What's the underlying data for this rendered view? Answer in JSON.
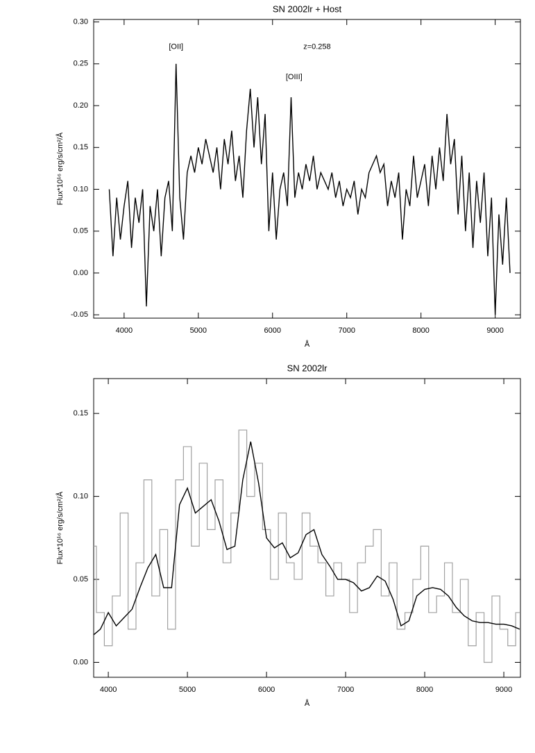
{
  "chart_data": [
    {
      "type": "line",
      "title": "SN 2002lr + Host",
      "x_label": "Å",
      "y_label": "Flux*10¹⁶ erg/s/cm²/Å",
      "annotations": [
        {
          "text": "[OII]",
          "x": 4700,
          "y": 0.27
        },
        {
          "text": "z=0.258",
          "x": 6600,
          "y": 0.27
        },
        {
          "text": "[OIII]",
          "x": 6290,
          "y": 0.234
        }
      ],
      "xlim": [
        3590,
        9340
      ],
      "ylim": [
        -0.054,
        0.303
      ],
      "xticks": [
        4000,
        5000,
        6000,
        7000,
        8000,
        9000
      ],
      "yticks": [
        {
          "value": -0.05,
          "label": "-0.05"
        },
        {
          "value": 0,
          "label": "0.00"
        },
        {
          "value": 0.05,
          "label": "0.05"
        },
        {
          "value": 0.1,
          "label": "0.10"
        },
        {
          "value": 0.15,
          "label": "0.15"
        },
        {
          "value": 0.2,
          "label": "0.20"
        },
        {
          "value": 0.25,
          "label": "0.25"
        },
        {
          "value": 0.3,
          "label": "0.30"
        }
      ],
      "x": [
        3800,
        3850,
        3900,
        3950,
        4000,
        4050,
        4100,
        4150,
        4200,
        4250,
        4300,
        4350,
        4400,
        4450,
        4500,
        4550,
        4600,
        4650,
        4700,
        4750,
        4800,
        4850,
        4900,
        4950,
        5000,
        5050,
        5100,
        5150,
        5200,
        5250,
        5300,
        5350,
        5400,
        5450,
        5500,
        5550,
        5600,
        5650,
        5700,
        5750,
        5800,
        5850,
        5900,
        5950,
        6000,
        6050,
        6100,
        6150,
        6200,
        6250,
        6300,
        6350,
        6400,
        6450,
        6500,
        6550,
        6600,
        6650,
        6700,
        6750,
        6800,
        6850,
        6900,
        6950,
        7000,
        7050,
        7100,
        7150,
        7200,
        7250,
        7300,
        7350,
        7400,
        7450,
        7500,
        7550,
        7600,
        7650,
        7700,
        7750,
        7800,
        7850,
        7900,
        7950,
        8000,
        8050,
        8100,
        8150,
        8200,
        8250,
        8300,
        8350,
        8400,
        8450,
        8500,
        8550,
        8600,
        8650,
        8700,
        8750,
        8800,
        8850,
        8900,
        8950,
        9000,
        9050,
        9100,
        9150,
        9200
      ],
      "series": [
        {
          "color": "#000000",
          "step": false,
          "values": [
            0.1,
            0.02,
            0.09,
            0.04,
            0.08,
            0.11,
            0.03,
            0.09,
            0.06,
            0.1,
            -0.04,
            0.08,
            0.05,
            0.1,
            0.02,
            0.09,
            0.11,
            0.05,
            0.25,
            0.09,
            0.04,
            0.12,
            0.14,
            0.12,
            0.15,
            0.13,
            0.16,
            0.14,
            0.12,
            0.15,
            0.1,
            0.16,
            0.13,
            0.17,
            0.11,
            0.14,
            0.09,
            0.17,
            0.22,
            0.15,
            0.21,
            0.13,
            0.19,
            0.05,
            0.12,
            0.04,
            0.1,
            0.12,
            0.08,
            0.21,
            0.09,
            0.12,
            0.1,
            0.13,
            0.11,
            0.14,
            0.1,
            0.12,
            0.11,
            0.1,
            0.12,
            0.09,
            0.11,
            0.08,
            0.1,
            0.09,
            0.11,
            0.07,
            0.1,
            0.09,
            0.12,
            0.13,
            0.14,
            0.12,
            0.13,
            0.08,
            0.11,
            0.09,
            0.12,
            0.04,
            0.1,
            0.08,
            0.14,
            0.09,
            0.11,
            0.13,
            0.08,
            0.14,
            0.1,
            0.15,
            0.11,
            0.19,
            0.13,
            0.16,
            0.07,
            0.14,
            0.05,
            0.12,
            0.03,
            0.11,
            0.06,
            0.12,
            0.02,
            0.09,
            -0.05,
            0.07,
            0.01,
            0.09,
            0.0
          ]
        }
      ]
    },
    {
      "type": "line",
      "title": "SN 2002lr",
      "x_label": "Å",
      "y_label": "Flux*10¹⁶ erg/s/cm²/Å",
      "xlim": [
        3815,
        9210
      ],
      "ylim": [
        -0.009,
        0.171
      ],
      "xticks": [
        4000,
        5000,
        6000,
        7000,
        8000,
        9000
      ],
      "yticks": [
        {
          "value": 0,
          "label": "0.00"
        },
        {
          "value": 0.05,
          "label": "0.05"
        },
        {
          "value": 0.1,
          "label": "0.10"
        },
        {
          "value": 0.15,
          "label": "0.15"
        }
      ],
      "x": [
        3800,
        3900,
        4000,
        4100,
        4200,
        4300,
        4400,
        4500,
        4600,
        4700,
        4800,
        4900,
        5000,
        5100,
        5200,
        5300,
        5400,
        5500,
        5600,
        5700,
        5800,
        5900,
        6000,
        6100,
        6200,
        6300,
        6400,
        6500,
        6600,
        6700,
        6800,
        6900,
        7000,
        7100,
        7200,
        7300,
        7400,
        7500,
        7600,
        7700,
        7800,
        7900,
        8000,
        8100,
        8200,
        8300,
        8400,
        8500,
        8600,
        8700,
        8800,
        8900,
        9000,
        9100,
        9200
      ],
      "series": [
        {
          "color": "#a0a0a0",
          "step": true,
          "values": [
            0.07,
            0.03,
            0.01,
            0.04,
            0.09,
            0.02,
            0.06,
            0.11,
            0.04,
            0.08,
            0.02,
            0.11,
            0.13,
            0.07,
            0.12,
            0.08,
            0.11,
            0.06,
            0.09,
            0.14,
            0.1,
            0.12,
            0.08,
            0.05,
            0.09,
            0.06,
            0.05,
            0.09,
            0.07,
            0.06,
            0.04,
            0.06,
            0.05,
            0.03,
            0.06,
            0.07,
            0.08,
            0.04,
            0.06,
            0.02,
            0.03,
            0.05,
            0.07,
            0.03,
            0.04,
            0.06,
            0.03,
            0.05,
            0.01,
            0.03,
            0.0,
            0.04,
            0.02,
            0.01,
            0.03
          ]
        },
        {
          "color": "#000000",
          "step": false,
          "values": [
            0.016,
            0.02,
            0.03,
            0.022,
            0.027,
            0.032,
            0.045,
            0.057,
            0.065,
            0.045,
            0.045,
            0.095,
            0.105,
            0.09,
            0.094,
            0.098,
            0.085,
            0.068,
            0.07,
            0.11,
            0.133,
            0.108,
            0.075,
            0.069,
            0.072,
            0.063,
            0.066,
            0.077,
            0.08,
            0.065,
            0.058,
            0.05,
            0.05,
            0.048,
            0.043,
            0.045,
            0.052,
            0.049,
            0.038,
            0.022,
            0.025,
            0.04,
            0.044,
            0.045,
            0.044,
            0.04,
            0.033,
            0.028,
            0.025,
            0.024,
            0.024,
            0.023,
            0.023,
            0.022,
            0.02
          ]
        }
      ]
    }
  ]
}
